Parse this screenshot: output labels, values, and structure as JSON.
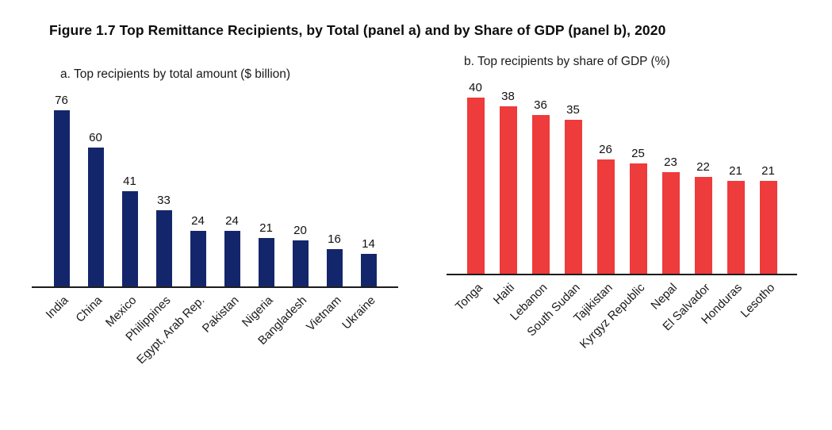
{
  "title": "Figure 1.7 Top Remittance Recipients, by Total (panel a) and by Share of GDP (panel b), 2020",
  "chart_data": [
    {
      "type": "bar",
      "title": "a. Top recipients by total amount ($ billion)",
      "categories": [
        "India",
        "China",
        "Mexico",
        "Philippines",
        "Egypt, Arab Rep.",
        "Pakistan",
        "Nigeria",
        "Bangladesh",
        "Vietnam",
        "Ukraine"
      ],
      "values": [
        76,
        60,
        41,
        33,
        24,
        24,
        21,
        20,
        16,
        14
      ],
      "bar_color": "#14266B",
      "xlabel": "",
      "ylabel": "",
      "ylim": [
        0,
        80
      ],
      "grid": false,
      "value_labels": true,
      "x_tick_rotation": 45,
      "legend": "none"
    },
    {
      "type": "bar",
      "title": "b. Top recipients by share of GDP (%)",
      "categories": [
        "Tonga",
        "Haiti",
        "Lebanon",
        "South Sudan",
        "Tajikistan",
        "Kyrgyz Republic",
        "Nepal",
        "El Salvador",
        "Honduras",
        "Lesotho"
      ],
      "values": [
        40,
        38,
        36,
        35,
        26,
        25,
        23,
        22,
        21,
        21
      ],
      "bar_color": "#EE3B3B",
      "xlabel": "",
      "ylabel": "",
      "ylim": [
        0,
        42
      ],
      "grid": false,
      "value_labels": true,
      "x_tick_rotation": 45,
      "legend": "none"
    }
  ]
}
